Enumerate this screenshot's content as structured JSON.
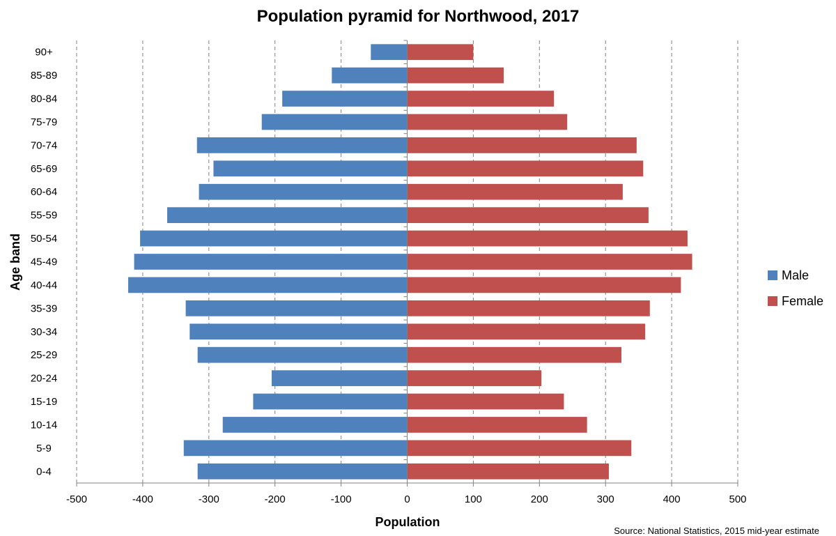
{
  "chart_data": {
    "type": "bar",
    "orientation": "horizontal",
    "title": "Population pyramid for Northwood, 2017",
    "xlabel": "Population",
    "ylabel": "Age band",
    "source": "Source: National Statistics, 2015 mid-year estimate",
    "categories": [
      "0-4",
      "5-9",
      "10-14",
      "15-19",
      "20-24",
      "25-29",
      "30-34",
      "35-39",
      "40-44",
      "45-49",
      "50-54",
      "55-59",
      "60-64",
      "65-69",
      "70-74",
      "75-79",
      "80-84",
      "85-89",
      "90+"
    ],
    "series": [
      {
        "name": "Male",
        "color": "#4F81BD",
        "values": [
          -317,
          -338,
          -279,
          -233,
          -205,
          -317,
          -329,
          -335,
          -422,
          -413,
          -404,
          -363,
          -315,
          -293,
          -318,
          -220,
          -189,
          -114,
          -55
        ]
      },
      {
        "name": "Female",
        "color": "#C0504D",
        "values": [
          305,
          339,
          272,
          237,
          203,
          324,
          360,
          367,
          414,
          431,
          424,
          365,
          326,
          357,
          347,
          242,
          222,
          146,
          100
        ]
      }
    ],
    "xlim": [
      -500,
      500
    ],
    "xticks": [
      -500,
      -400,
      -300,
      -200,
      -100,
      0,
      100,
      200,
      300,
      400,
      500
    ],
    "grid": "vertical-dashed",
    "legend_position": "right"
  }
}
